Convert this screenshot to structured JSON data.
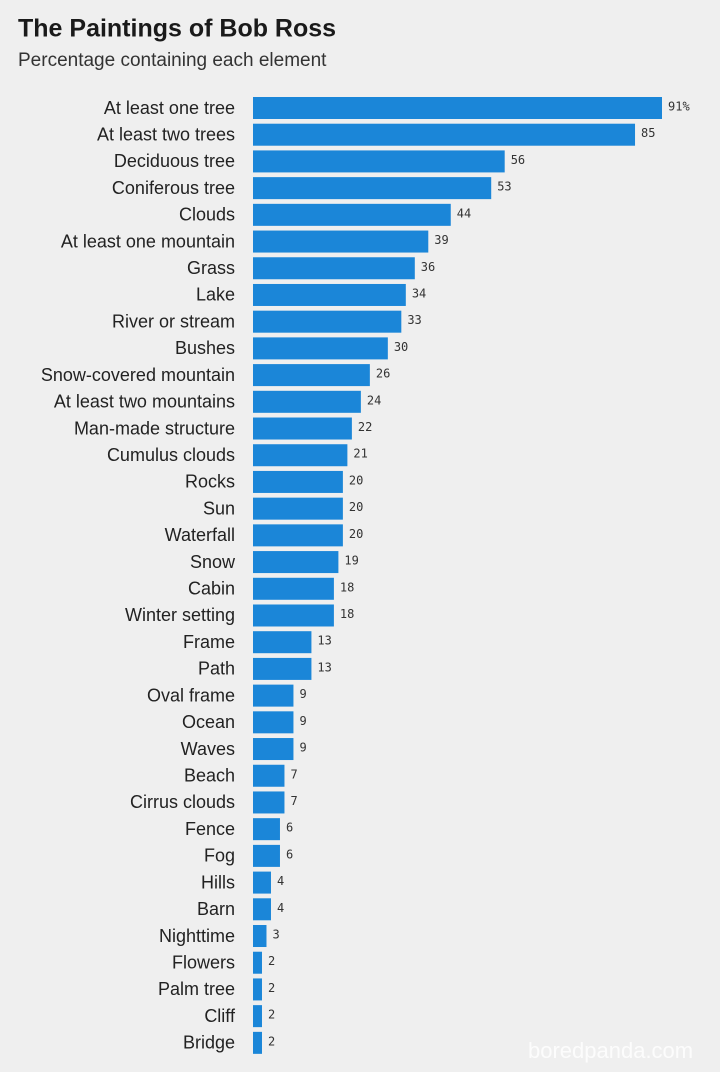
{
  "chart_data": {
    "type": "bar",
    "orientation": "horizontal",
    "title": "The Paintings of Bob Ross",
    "subtitle": "Percentage containing each element",
    "categories": [
      "At least one tree",
      "At least two trees",
      "Deciduous tree",
      "Coniferous tree",
      "Clouds",
      "At least one mountain",
      "Grass",
      "Lake",
      "River or stream",
      "Bushes",
      "Snow-covered mountain",
      "At least two mountains",
      "Man-made structure",
      "Cumulus clouds",
      "Rocks",
      "Sun",
      "Waterfall",
      "Snow",
      "Cabin",
      "Winter setting",
      "Frame",
      "Path",
      "Oval frame",
      "Ocean",
      "Waves",
      "Beach",
      "Cirrus clouds",
      "Fence",
      "Fog",
      "Hills",
      "Barn",
      "Nighttime",
      "Flowers",
      "Palm tree",
      "Cliff",
      "Bridge"
    ],
    "values": [
      91,
      85,
      56,
      53,
      44,
      39,
      36,
      34,
      33,
      30,
      26,
      24,
      22,
      21,
      20,
      20,
      20,
      19,
      18,
      18,
      13,
      13,
      9,
      9,
      9,
      7,
      7,
      6,
      6,
      4,
      4,
      3,
      2,
      2,
      2,
      2
    ],
    "value_labels": [
      "91%",
      "85",
      "56",
      "53",
      "44",
      "39",
      "36",
      "34",
      "33",
      "30",
      "26",
      "24",
      "22",
      "21",
      "20",
      "20",
      "20",
      "19",
      "18",
      "18",
      "13",
      "13",
      "9",
      "9",
      "9",
      "7",
      "7",
      "6",
      "6",
      "4",
      "4",
      "3",
      "2",
      "2",
      "2",
      "2"
    ],
    "color": "#1b86d8",
    "watermark": "boredpanda.com"
  }
}
